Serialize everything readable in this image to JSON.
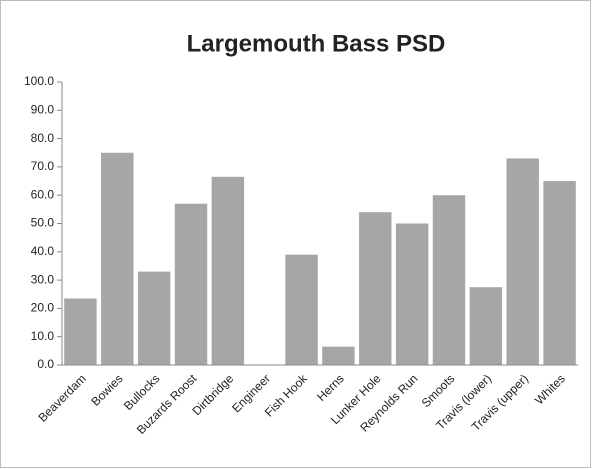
{
  "chart_data": {
    "type": "bar",
    "title": "Largemouth Bass PSD",
    "categories": [
      "Beaverdam",
      "Bowies",
      "Bullocks",
      "Buzards Roost",
      "Dirtbridge",
      "Engineer",
      "Fish Hook",
      "Herns",
      "Lunker Hole",
      "Reynolds Run",
      "Smoots",
      "Travis (lower)",
      "Travis (upper)",
      "Whites"
    ],
    "values": [
      23.5,
      75,
      33,
      57,
      66.5,
      0,
      39,
      6.5,
      54,
      50,
      60,
      27.5,
      73,
      65
    ],
    "color": "#a6a6a6",
    "ylim": [
      0,
      100
    ],
    "yticks": [
      {
        "value": 0,
        "label": "0.0"
      },
      {
        "value": 10,
        "label": "10.0"
      },
      {
        "value": 20,
        "label": "20.0"
      },
      {
        "value": 30,
        "label": "30.0"
      },
      {
        "value": 40,
        "label": "40.0"
      },
      {
        "value": 50,
        "label": "50.0"
      },
      {
        "value": 60,
        "label": "60.0"
      },
      {
        "value": 70,
        "label": "70.0"
      },
      {
        "value": 80,
        "label": "80.0"
      },
      {
        "value": 90,
        "label": "90.0"
      },
      {
        "value": 100,
        "label": "100.0"
      }
    ],
    "grid": false
  }
}
